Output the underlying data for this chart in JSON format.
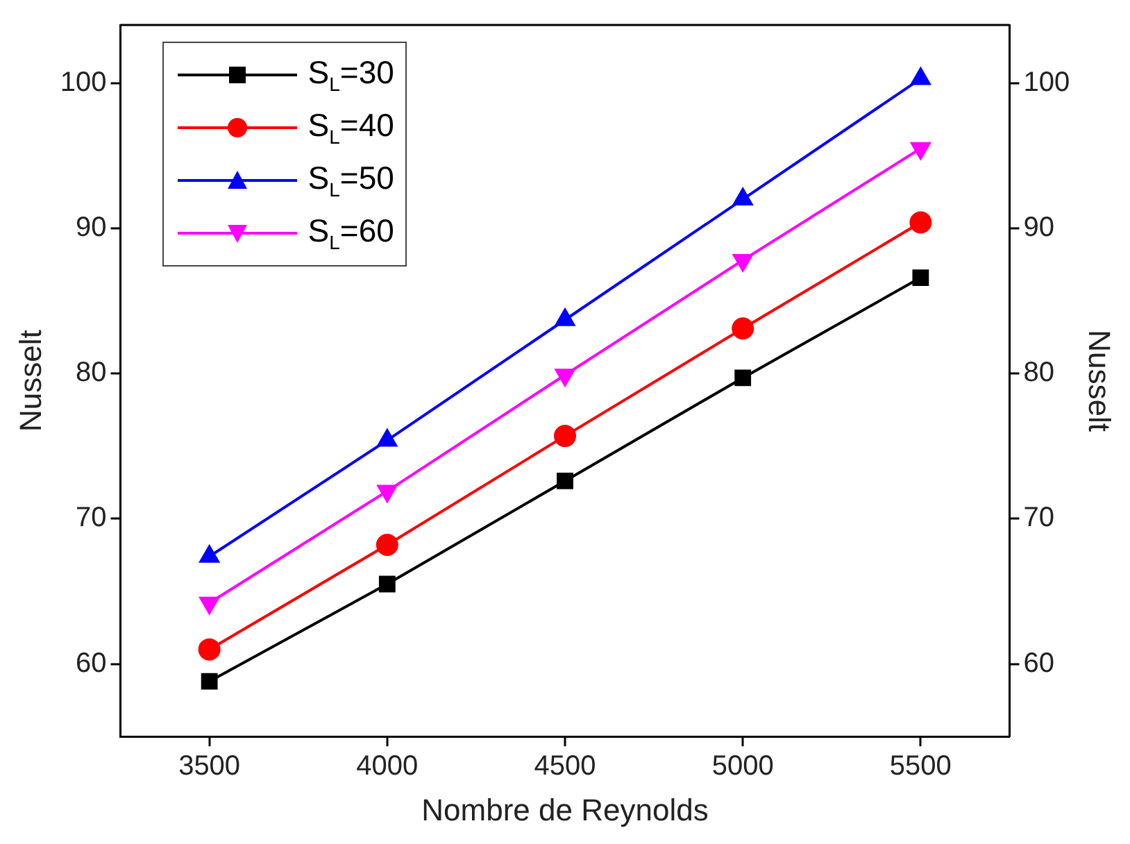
{
  "chart_data": {
    "type": "line",
    "xlabel": "Nombre de Reynolds",
    "ylabel": "Nusselt",
    "y2label": "Nusselt",
    "x": [
      3500,
      4000,
      4500,
      5000,
      5500
    ],
    "series": [
      {
        "name": "S$_{L}$=30",
        "color": "#000000",
        "marker": "square",
        "values": [
          58.8,
          65.5,
          72.6,
          79.7,
          86.6
        ]
      },
      {
        "name": "S$_{L}$=40",
        "color": "#ff0000",
        "marker": "circle",
        "values": [
          61.0,
          68.2,
          75.7,
          83.1,
          90.4
        ]
      },
      {
        "name": "S$_{L}$=50",
        "color": "#0000ff",
        "marker": "triangle",
        "values": [
          67.4,
          75.4,
          83.7,
          92.0,
          100.3
        ]
      },
      {
        "name": "S$_{L}$=60",
        "color": "#ff00ff",
        "marker": "triangle-down",
        "values": [
          64.2,
          71.9,
          79.9,
          87.8,
          95.5
        ]
      }
    ],
    "xlim": [
      3250,
      5750
    ],
    "xticks": [
      3500,
      4000,
      4500,
      5000,
      5500
    ],
    "ylim": [
      55,
      104
    ],
    "yticks": [
      60,
      70,
      80,
      90,
      100
    ],
    "y2lim": [
      55,
      104
    ],
    "y2ticks": [
      60,
      70,
      80,
      90,
      100
    ],
    "grid": false,
    "legend": "top left",
    "line_style": "solid"
  }
}
